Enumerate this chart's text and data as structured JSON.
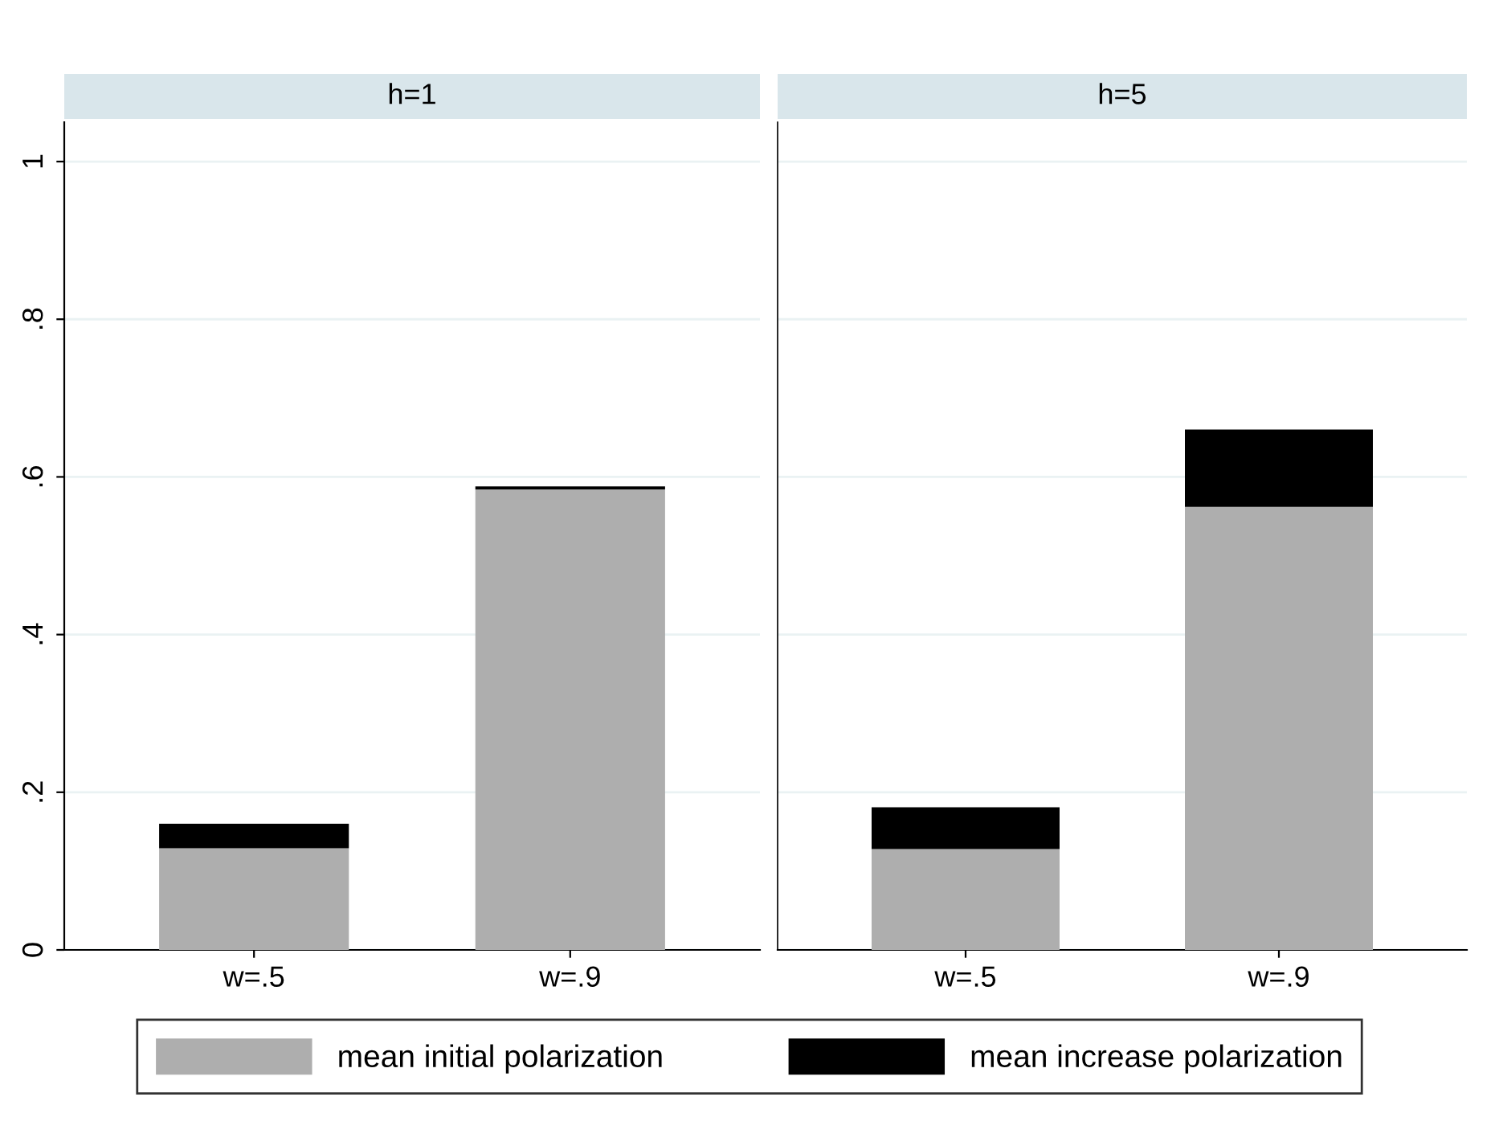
{
  "chart_data": [
    {
      "type": "bar",
      "title": "h=1",
      "categories": [
        "w=.5",
        "w=.9"
      ],
      "stacked": true,
      "ylim": [
        0,
        1.05
      ],
      "yticks": [
        {
          "value": 0,
          "label": "0"
        },
        {
          "value": 0.2,
          "label": ".2"
        },
        {
          "value": 0.4,
          "label": ".4"
        },
        {
          "value": 0.6,
          "label": ".6"
        },
        {
          "value": 0.8,
          "label": ".8"
        },
        {
          "value": 1,
          "label": "1"
        }
      ],
      "grid": "y",
      "legend": "bottom",
      "series": [
        {
          "name": "mean initial polarization",
          "color": "#aeaeae",
          "values": [
            0.129,
            0.584
          ]
        },
        {
          "name": "mean increase polarization",
          "color": "#000000",
          "values": [
            0.031,
            0.004
          ]
        }
      ]
    },
    {
      "type": "bar",
      "title": "h=5",
      "categories": [
        "w=.5",
        "w=.9"
      ],
      "stacked": true,
      "ylim": [
        0,
        1.05
      ],
      "yticks": [
        0,
        0.2,
        0.4,
        0.6,
        0.8,
        1
      ],
      "grid": "y",
      "tick_labels": "x",
      "series": [
        {
          "name": "mean initial polarization",
          "color": "#aeaeae",
          "values": [
            0.128,
            0.562
          ]
        },
        {
          "name": "mean increase polarization",
          "color": "#000000",
          "values": [
            0.053,
            0.098
          ]
        }
      ]
    }
  ]
}
